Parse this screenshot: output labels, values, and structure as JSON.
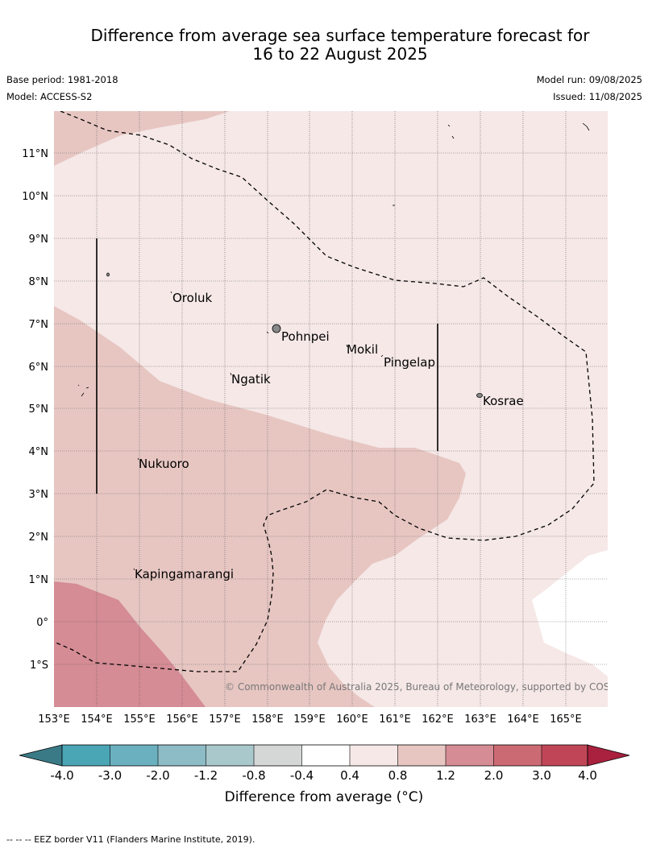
{
  "title_line1": "Difference from average sea surface temperature forecast for",
  "title_line2": "16 to 22 August 2025",
  "base_period": "Base period: 1981-2018",
  "model": "Model: ACCESS-S2",
  "model_run": "Model run: 09/08/2025",
  "issued": "Issued: 11/08/2025",
  "copyright": "© Commonwealth of Australia 2025, Bureau of Meteorology, supported by COSPPac",
  "lat_labels": [
    "11°N",
    "10°N",
    "9°N",
    "8°N",
    "7°N",
    "6°N",
    "5°N",
    "4°N",
    "3°N",
    "2°N",
    "1°N",
    "0°",
    "1°S"
  ],
  "lon_labels": [
    "153°E",
    "154°E",
    "155°E",
    "156°E",
    "157°E",
    "158°E",
    "159°E",
    "160°E",
    "161°E",
    "162°E",
    "163°E",
    "164°E",
    "165°E"
  ],
  "places": [
    {
      "name": "Oroluk",
      "lon": 155.8,
      "lat": 7.6
    },
    {
      "name": "Pohnpei",
      "lon": 158.3,
      "lat": 6.95
    },
    {
      "name": "Mokil",
      "lon": 159.8,
      "lat": 6.65
    },
    {
      "name": "Pingelap",
      "lon": 160.7,
      "lat": 6.2
    },
    {
      "name": "Ngatik",
      "lon": 157.1,
      "lat": 5.8
    },
    {
      "name": "Kosrae",
      "lon": 163.0,
      "lat": 5.3
    },
    {
      "name": "Nukuoro",
      "lon": 154.85,
      "lat": 3.85
    },
    {
      "name": "Kapingamarangi",
      "lon": 154.8,
      "lat": 1.1
    }
  ],
  "colorbar": {
    "title": "Difference from average (°C)",
    "ticks": [
      "-4.0",
      "-3.0",
      "-2.0",
      "-1.2",
      "-0.8",
      "-0.4",
      "0.4",
      "0.8",
      "1.2",
      "2.0",
      "3.0",
      "4.0"
    ],
    "colors": [
      "#3a7a87",
      "#4aa5b5",
      "#6ab0bf",
      "#8dbbc6",
      "#a9c8cc",
      "#d4d7d6",
      "#ffffff",
      "#f5e8e7",
      "#e7c6c2",
      "#d58c94",
      "#cc6a74",
      "#c04657",
      "#a9213f"
    ]
  },
  "footnote": "--  --  -- EEZ border V11 (Flanders Marine Institute, 2019).",
  "colors": {
    "bg_low": "#f5e8e7",
    "mid": "#e7c6c2",
    "high": "#d58c94"
  }
}
